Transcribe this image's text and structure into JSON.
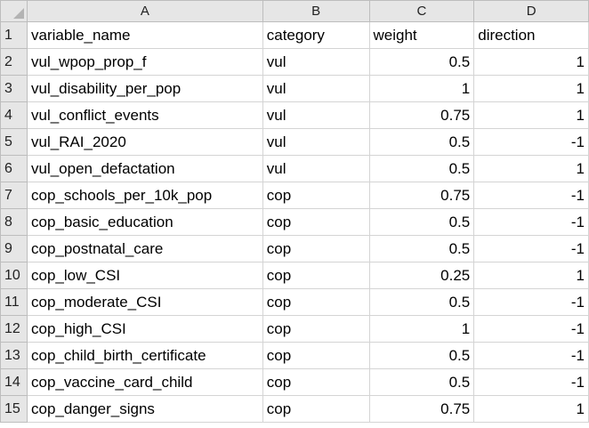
{
  "columns": [
    "A",
    "B",
    "C",
    "D"
  ],
  "header_row": {
    "row_number": "1",
    "cells": [
      "variable_name",
      "category",
      "weight",
      "direction"
    ]
  },
  "rows": [
    {
      "row_number": "2",
      "variable_name": "vul_wpop_prop_f",
      "category": "vul",
      "weight": "0.5",
      "direction": "1"
    },
    {
      "row_number": "3",
      "variable_name": "vul_disability_per_pop",
      "category": "vul",
      "weight": "1",
      "direction": "1"
    },
    {
      "row_number": "4",
      "variable_name": "vul_conflict_events",
      "category": "vul",
      "weight": "0.75",
      "direction": "1"
    },
    {
      "row_number": "5",
      "variable_name": "vul_RAI_2020",
      "category": "vul",
      "weight": "0.5",
      "direction": "-1"
    },
    {
      "row_number": "6",
      "variable_name": "vul_open_defactation",
      "category": "vul",
      "weight": "0.5",
      "direction": "1"
    },
    {
      "row_number": "7",
      "variable_name": "cop_schools_per_10k_pop",
      "category": "cop",
      "weight": "0.75",
      "direction": "-1"
    },
    {
      "row_number": "8",
      "variable_name": "cop_basic_education",
      "category": "cop",
      "weight": "0.5",
      "direction": "-1"
    },
    {
      "row_number": "9",
      "variable_name": "cop_postnatal_care",
      "category": "cop",
      "weight": "0.5",
      "direction": "-1"
    },
    {
      "row_number": "10",
      "variable_name": "cop_low_CSI",
      "category": "cop",
      "weight": "0.25",
      "direction": "1"
    },
    {
      "row_number": "11",
      "variable_name": "cop_moderate_CSI",
      "category": "cop",
      "weight": "0.5",
      "direction": "-1"
    },
    {
      "row_number": "12",
      "variable_name": "cop_high_CSI",
      "category": "cop",
      "weight": "1",
      "direction": "-1"
    },
    {
      "row_number": "13",
      "variable_name": "cop_child_birth_certificate",
      "category": "cop",
      "weight": "0.5",
      "direction": "-1"
    },
    {
      "row_number": "14",
      "variable_name": "cop_vaccine_card_child",
      "category": "cop",
      "weight": "0.5",
      "direction": "-1"
    },
    {
      "row_number": "15",
      "variable_name": "cop_danger_signs",
      "category": "cop",
      "weight": "0.75",
      "direction": "1"
    }
  ]
}
